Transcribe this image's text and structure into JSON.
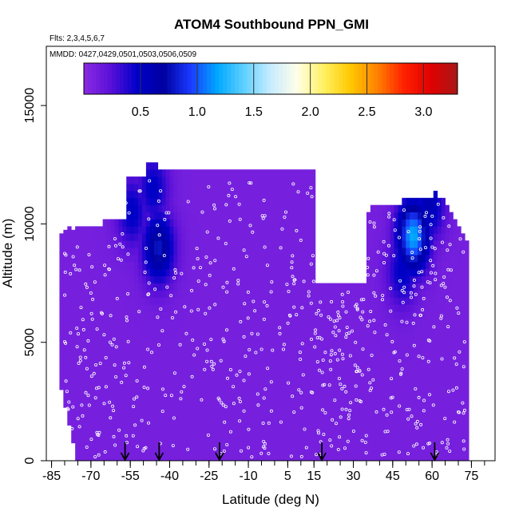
{
  "chart_data": {
    "type": "heatmap",
    "title": "ATOM4 Southbound PPN_GMI",
    "subtitle_flights": "Flts: 2,3,4,5,6,7",
    "subtitle_dates": "MMDD: 0427,0429,0501,0503,0506,0509",
    "xlabel": "Latitude (deg N)",
    "ylabel": "Altitude (m)",
    "xlim": [
      -87,
      84
    ],
    "ylim": [
      0,
      17500
    ],
    "x_ticks": [
      -85,
      -70,
      -55,
      -40,
      -25,
      -10,
      5,
      15,
      30,
      45,
      60,
      75
    ],
    "x_tick_labels": [
      "-85",
      "-70",
      "-55",
      "-40",
      "-25",
      "-10",
      "5",
      "15",
      "30",
      "45",
      "60",
      "75"
    ],
    "y_ticks": [
      0,
      5000,
      10000,
      15000
    ],
    "y_tick_labels": [
      "0",
      "5000",
      "10000",
      "15000"
    ],
    "colorbar": {
      "min": 0.0,
      "max": 3.3,
      "ticks": [
        0.5,
        1.0,
        1.5,
        2.0,
        2.5,
        3.0
      ],
      "tick_labels": [
        "0.5",
        "1.0",
        "1.5",
        "2.0",
        "2.5",
        "3.0"
      ],
      "colors": [
        "#8a2be2",
        "#5a10d8",
        "#0000c8",
        "#0000a0",
        "#1a3aff",
        "#00a8ff",
        "#5fd0ff",
        "#c8ecff",
        "#ffffe6",
        "#fff060",
        "#ffc800",
        "#ff8000",
        "#ff2000",
        "#e00000",
        "#a81818"
      ]
    },
    "flight_arrow_latitudes": [
      -57,
      -44,
      -21,
      18,
      61
    ],
    "background_value": 0.1,
    "high_regions": [
      {
        "lat": -45,
        "alt": 9000,
        "value": 0.8
      },
      {
        "lat": -47,
        "alt": 11500,
        "value": 0.5
      },
      {
        "lat": -55,
        "alt": 10500,
        "value": 0.5
      },
      {
        "lat": 52,
        "alt": 9500,
        "value": 1.2
      },
      {
        "lat": 58,
        "alt": 10800,
        "value": 0.6
      },
      {
        "lat": 48,
        "alt": 8000,
        "value": 0.5
      }
    ]
  }
}
